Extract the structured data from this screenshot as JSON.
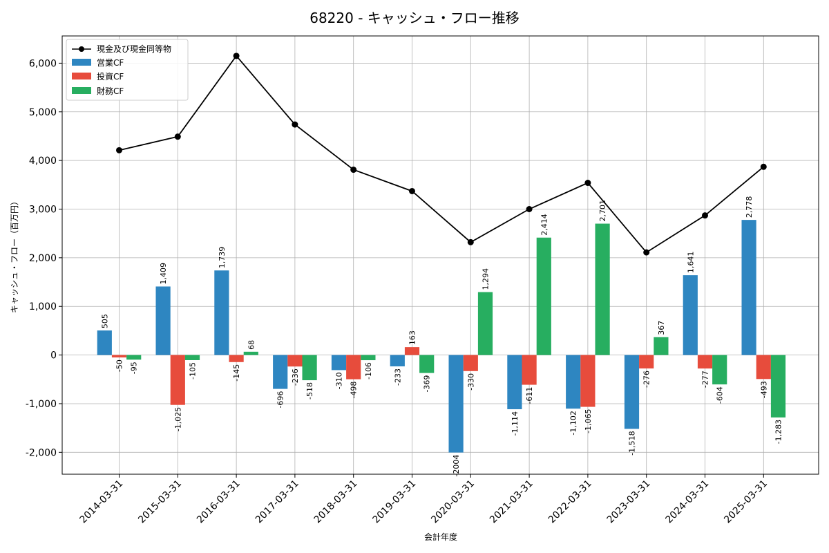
{
  "chart_data": {
    "type": "bar",
    "title": "68220 - キャッシュ・フロー推移",
    "xlabel": "会計年度",
    "ylabel": "キャッシュ・フロー（百万円）",
    "ylim": [
      -2450,
      6560
    ],
    "yticks": [
      -2000,
      -1000,
      0,
      1000,
      2000,
      3000,
      4000,
      5000,
      6000
    ],
    "ytick_labels": [
      "-2,000",
      "-1,000",
      "0",
      "1,000",
      "2,000",
      "3,000",
      "4,000",
      "5,000",
      "6,000"
    ],
    "grid": true,
    "legend_position": "top-left",
    "categories": [
      "2014-03-31",
      "2015-03-31",
      "2016-03-31",
      "2017-03-31",
      "2018-03-31",
      "2019-03-31",
      "2020-03-31",
      "2021-03-31",
      "2022-03-31",
      "2023-03-31",
      "2024-03-31",
      "2025-03-31"
    ],
    "line": {
      "name": "現金及び現金同等物",
      "color": "#000000",
      "values": [
        4210,
        4490,
        6150,
        4740,
        3810,
        3370,
        2320,
        3000,
        3540,
        2110,
        2870,
        3870
      ]
    },
    "series": [
      {
        "name": "営業CF",
        "color": "#2e86c1",
        "values": [
          505,
          1409,
          1739,
          -696,
          -310,
          -233,
          -2004,
          -1114,
          -1102,
          -1518,
          1641,
          2778
        ],
        "labels": [
          "505",
          "1,409",
          "1,739",
          "-696",
          "-310",
          "-233",
          "-2004",
          "-1,114",
          "-1,102",
          "-1,518",
          "1,641",
          "2,778"
        ]
      },
      {
        "name": "投資CF",
        "color": "#e74c3c",
        "values": [
          -50,
          -1025,
          -145,
          -236,
          -498,
          163,
          -330,
          -611,
          -1065,
          -276,
          -277,
          -493
        ],
        "labels": [
          "-50",
          "-1,025",
          "-145",
          "-236",
          "-498",
          "163",
          "-330",
          "-611",
          "-1,065",
          "-276",
          "-277",
          "-493"
        ]
      },
      {
        "name": "財務CF",
        "color": "#27ae60",
        "values": [
          -95,
          -105,
          68,
          -518,
          -106,
          -369,
          1294,
          2414,
          2701,
          367,
          -604,
          -1283
        ],
        "labels": [
          "-95",
          "-105",
          "68",
          "-518",
          "-106",
          "-369",
          "1,294",
          "2,414",
          "2,701",
          "367",
          "-604",
          "-1,283"
        ]
      }
    ]
  }
}
